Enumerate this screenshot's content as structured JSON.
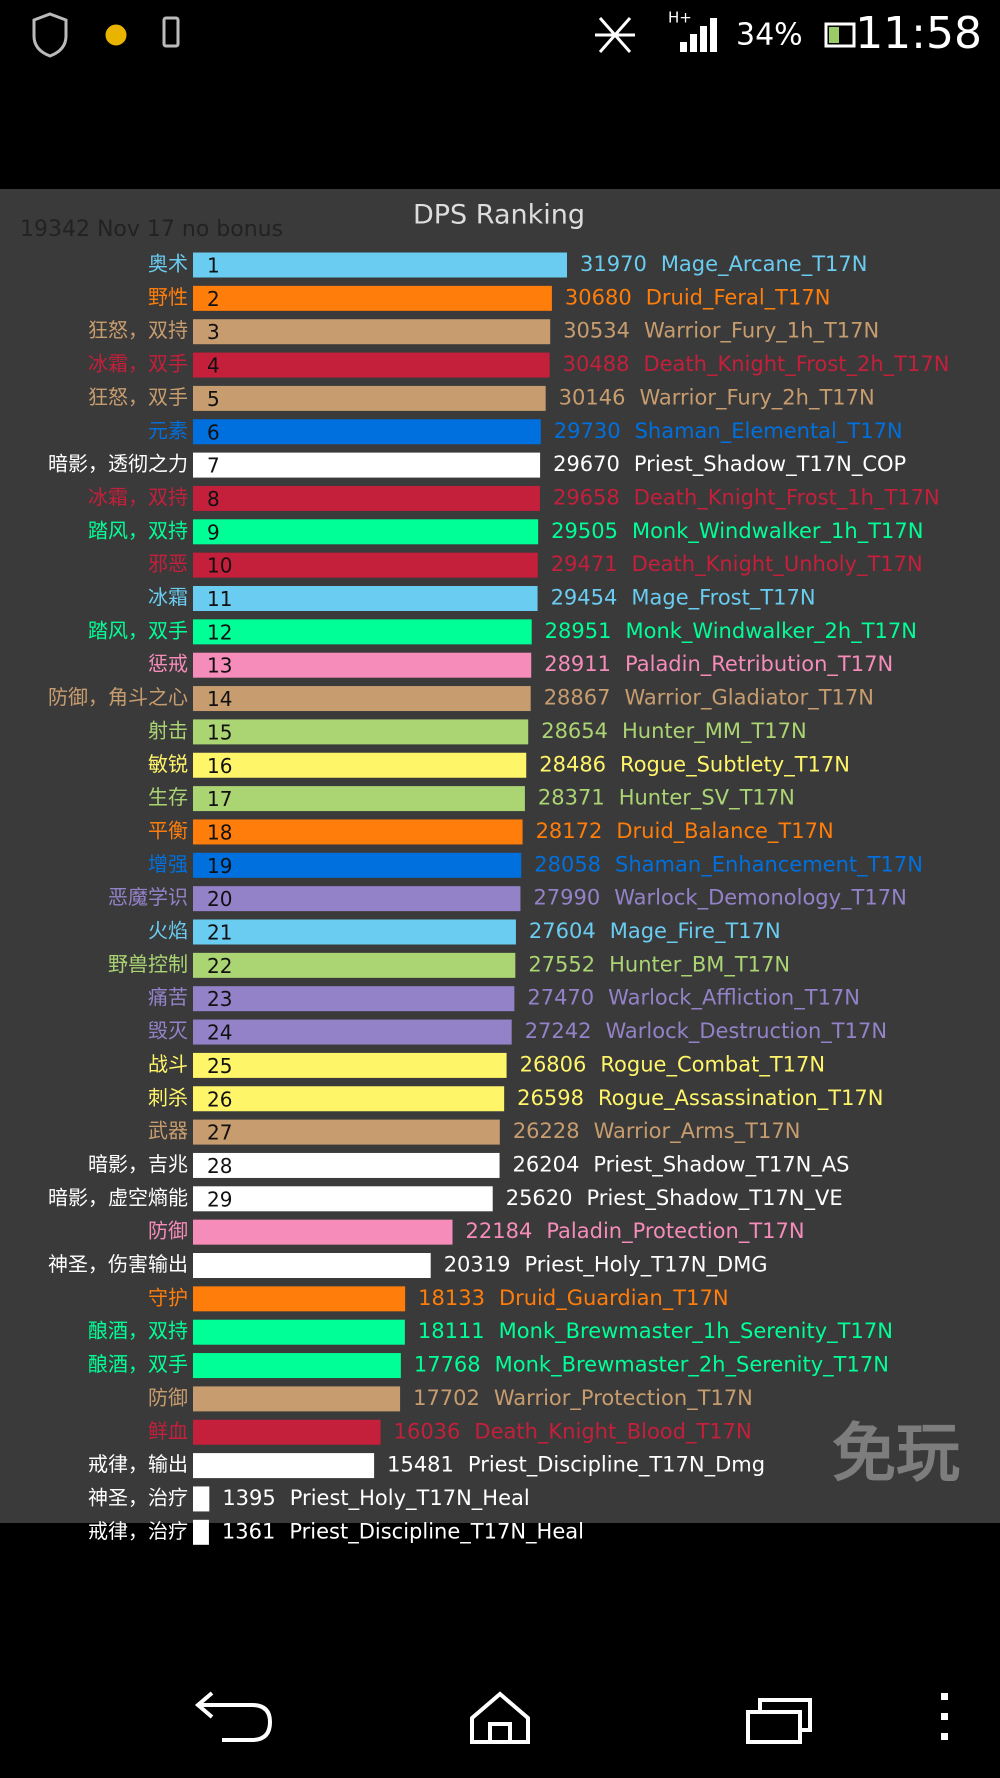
{
  "status_bar": {
    "network": "H+",
    "battery": "34%",
    "time": "11:58"
  },
  "watermark": "免玩",
  "chart_data": {
    "type": "bar",
    "orientation": "horizontal",
    "title": "DPS Ranking",
    "subtitle": "19342 Nov 17 no bonus",
    "categories": [
      "Mage_Arcane_T17N",
      "Druid_Feral_T17N",
      "Warrior_Fury_1h_T17N",
      "Death_Knight_Frost_2h_T17N",
      "Warrior_Fury_2h_T17N",
      "Shaman_Elemental_T17N",
      "Priest_Shadow_T17N_COP",
      "Death_Knight_Frost_1h_T17N",
      "Monk_Windwalker_1h_T17N",
      "Death_Knight_Unholy_T17N",
      "Mage_Frost_T17N",
      "Monk_Windwalker_2h_T17N",
      "Paladin_Retribution_T17N",
      "Warrior_Gladiator_T17N",
      "Hunter_MM_T17N",
      "Rogue_Subtlety_T17N",
      "Hunter_SV_T17N",
      "Druid_Balance_T17N",
      "Shaman_Enhancement_T17N",
      "Warlock_Demonology_T17N",
      "Mage_Fire_T17N",
      "Hunter_BM_T17N",
      "Warlock_Affliction_T17N",
      "Warlock_Destruction_T17N",
      "Rogue_Combat_T17N",
      "Rogue_Assassination_T17N",
      "Warrior_Arms_T17N",
      "Priest_Shadow_T17N_AS",
      "Priest_Shadow_T17N_VE",
      "Paladin_Protection_T17N",
      "Priest_Holy_T17N_DMG",
      "Druid_Guardian_T17N",
      "Monk_Brewmaster_1h_Serenity_T17N",
      "Monk_Brewmaster_2h_Serenity_T17N",
      "Warrior_Protection_T17N",
      "Death_Knight_Blood_T17N",
      "Priest_Discipline_T17N_Dmg",
      "Priest_Holy_T17N_Heal",
      "Priest_Discipline_T17N_Heal"
    ],
    "spec_labels": [
      "奥术",
      "野性",
      "狂怒，双持",
      "冰霜，双手",
      "狂怒，双手",
      "元素",
      "暗影，透彻之力",
      "冰霜，双持",
      "踏风，双持",
      "邪恶",
      "冰霜",
      "踏风，双手",
      "惩戒",
      "防御，角斗之心",
      "射击",
      "敏锐",
      "生存",
      "平衡",
      "增强",
      "恶魔学识",
      "火焰",
      "野兽控制",
      "痛苦",
      "毁灭",
      "战斗",
      "刺杀",
      "武器",
      "暗影，吉兆",
      "暗影，虚空熵能",
      "防御",
      "神圣，伤害输出",
      "守护",
      "酿酒，双持",
      "酿酒，双手",
      "防御",
      "鲜血",
      "戒律，输出",
      "神圣，治疗",
      "戒律，治疗"
    ],
    "ranks": [
      1,
      2,
      3,
      4,
      5,
      6,
      7,
      8,
      9,
      10,
      11,
      12,
      13,
      14,
      15,
      16,
      17,
      18,
      19,
      20,
      21,
      22,
      23,
      24,
      25,
      26,
      27,
      28,
      29,
      null,
      null,
      null,
      null,
      null,
      null,
      null,
      null,
      null,
      null
    ],
    "values": [
      31970,
      30680,
      30534,
      30488,
      30146,
      29730,
      29670,
      29658,
      29505,
      29471,
      29454,
      28951,
      28911,
      28867,
      28654,
      28486,
      28371,
      28172,
      28058,
      27990,
      27604,
      27552,
      27470,
      27242,
      26806,
      26598,
      26228,
      26204,
      25620,
      22184,
      20319,
      18133,
      18111,
      17768,
      17702,
      16036,
      15481,
      1395,
      1361
    ],
    "colors": [
      "#69ccf0",
      "#ff7d0a",
      "#c79c6e",
      "#c41f3b",
      "#c79c6e",
      "#0070de",
      "#ffffff",
      "#c41f3b",
      "#00ff96",
      "#c41f3b",
      "#69ccf0",
      "#00ff96",
      "#f58cba",
      "#c79c6e",
      "#abd473",
      "#fff569",
      "#abd473",
      "#ff7d0a",
      "#0070de",
      "#9482c9",
      "#69ccf0",
      "#abd473",
      "#9482c9",
      "#9482c9",
      "#fff569",
      "#fff569",
      "#c79c6e",
      "#ffffff",
      "#ffffff",
      "#f58cba",
      "#ffffff",
      "#ff7d0a",
      "#00ff96",
      "#00ff96",
      "#c79c6e",
      "#c41f3b",
      "#ffffff",
      "#ffffff",
      "#ffffff"
    ]
  }
}
